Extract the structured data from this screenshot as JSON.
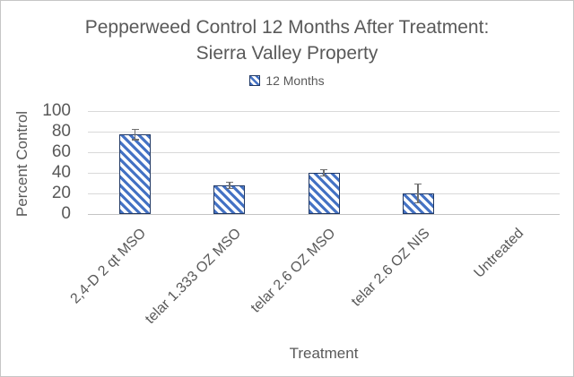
{
  "figure": {
    "background": "#ffffff",
    "frame_color": "#c6c6c6",
    "text_color": "#595959"
  },
  "chart_data": {
    "type": "bar",
    "title": "Pepperweed Control 12 Months After Treatment: Sierra Valley Property",
    "title_lines": [
      "Pepperweed Control 12 Months After Treatment:",
      "Sierra Valley Property"
    ],
    "legend": {
      "position": "top",
      "entries": [
        {
          "label": "12 Months",
          "swatch": "diagonal-hatch-icon",
          "color": "#4472C4"
        }
      ]
    },
    "xlabel": "Treatment",
    "ylabel": "Percent Control",
    "categories": [
      "2,4-D 2 qt MSO",
      "telar 1.333 OZ MSO",
      "telar 2.6 OZ MSO",
      "telar 2.6 OZ NIS",
      "Untreated"
    ],
    "series": [
      {
        "name": "12 Months",
        "values": [
          77,
          28,
          40,
          20,
          0
        ],
        "error_bars": [
          5,
          3,
          3,
          9,
          0
        ]
      }
    ],
    "ylim": [
      0,
      100
    ],
    "yticks": [
      0,
      20,
      40,
      60,
      80,
      100
    ],
    "grid": "horizontal",
    "styles": {
      "bar_stripe_color": "#4472C4",
      "bar_border_color": "#203864",
      "gridline_color": "#d9d9d9",
      "error_bar_color": "#6f6f6f"
    }
  }
}
